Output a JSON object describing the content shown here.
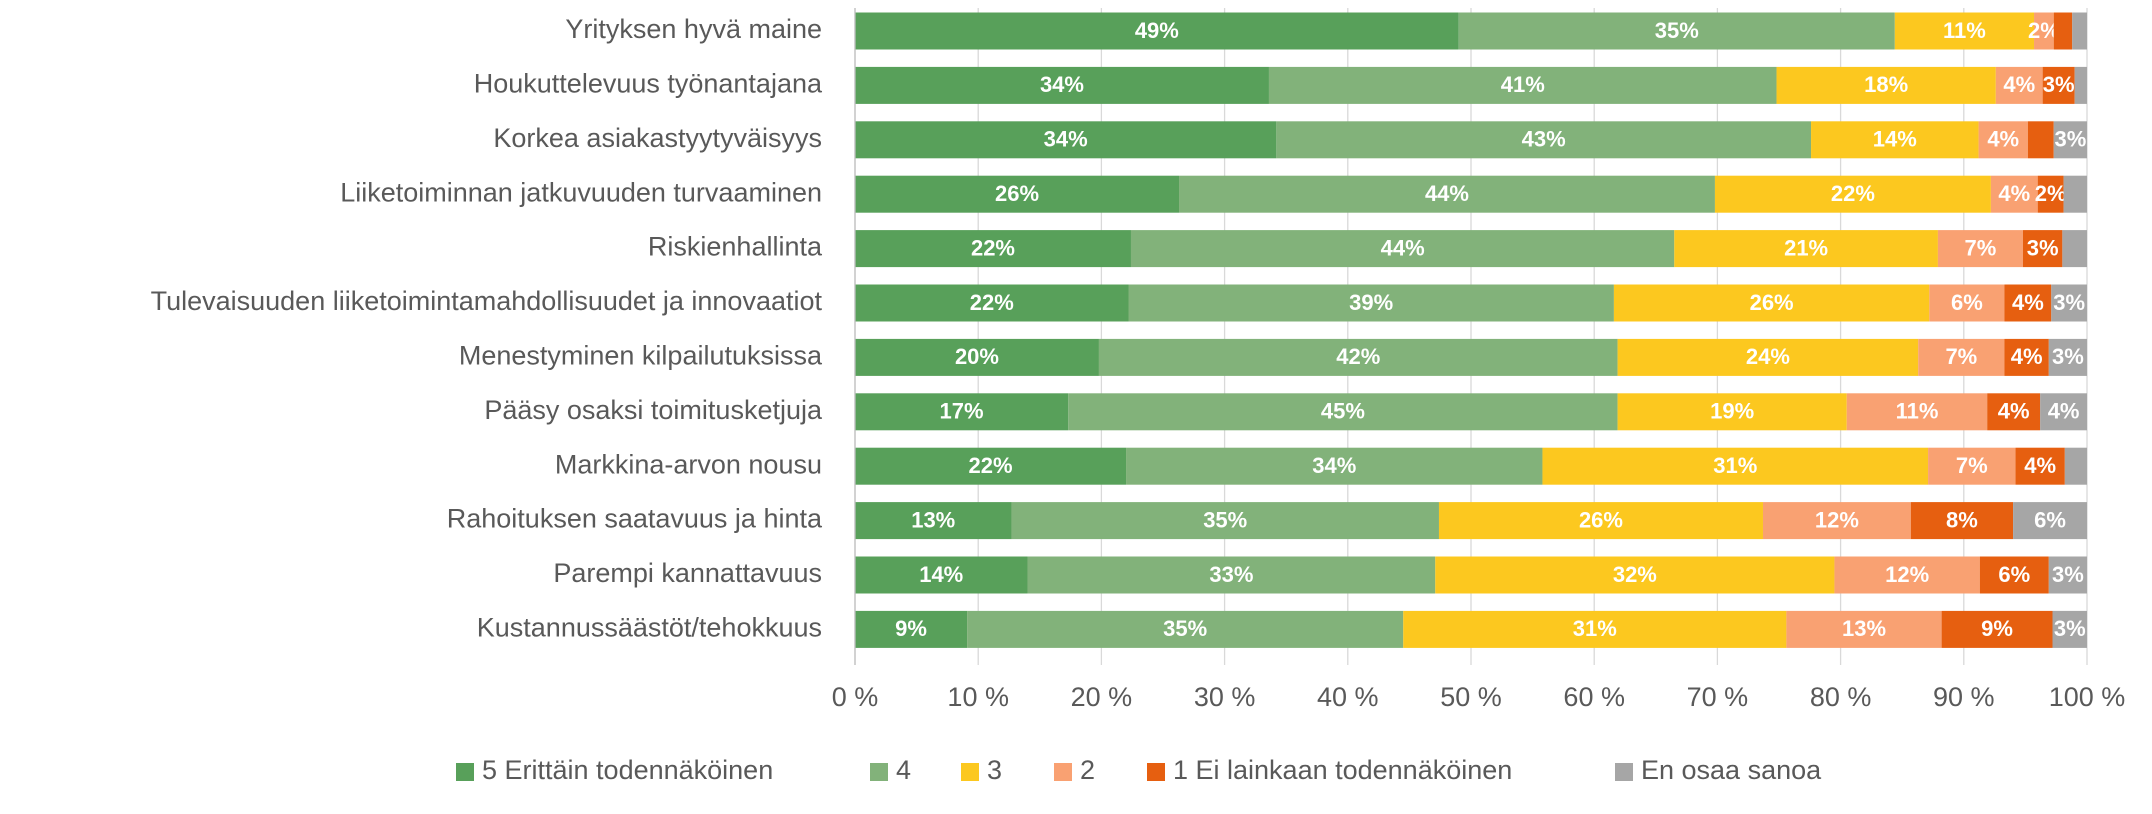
{
  "chart_data": {
    "type": "stacked_bar_horizontal",
    "categories": [
      "Yrityksen hyvä maine",
      "Houkuttelevuus työnantajana",
      "Korkea asiakastyytyväisyys",
      "Liiketoiminnan jatkuvuuden turvaaminen",
      "Riskienhallinta",
      "Tulevaisuuden liiketoimintamahdollisuudet ja innovaatiot",
      "Menestyminen kilpailutuksissa",
      "Pääsy osaksi toimitusketjuja",
      "Markkina-arvon nousu",
      "Rahoituksen saatavuus ja hinta",
      "Parempi kannattavuus",
      "Kustannussäästöt/tehokkuus"
    ],
    "series": [
      {
        "name": "5 Erittäin todennäköinen",
        "color": "#58a05a",
        "values": [
          49,
          33.6,
          34.2,
          26.3,
          22.4,
          22.2,
          19.8,
          17.3,
          22.0,
          12.7,
          14.0,
          9.1
        ],
        "value_labels": [
          "49%",
          "34%",
          "34%",
          "26%",
          "22%",
          "22%",
          "20%",
          "17%",
          "22%",
          "13%",
          "14%",
          "9%"
        ]
      },
      {
        "name": "4",
        "color": "#82b27a",
        "values": [
          35.4,
          41.2,
          43.4,
          43.5,
          44.1,
          39.4,
          42.1,
          44.6,
          33.8,
          34.7,
          33.1,
          35.4
        ],
        "value_labels": [
          "35%",
          "41%",
          "43%",
          "44%",
          "44%",
          "39%",
          "42%",
          "45%",
          "34%",
          "35%",
          "33%",
          "35%"
        ]
      },
      {
        "name": "3",
        "color": "#fcc81f",
        "values": [
          11.3,
          17.8,
          13.6,
          22.4,
          21.4,
          25.6,
          24.4,
          18.6,
          31.3,
          26.3,
          32.4,
          31.1
        ],
        "value_labels": [
          "11%",
          "18%",
          "14%",
          "22%",
          "21%",
          "26%",
          "24%",
          "19%",
          "31%",
          "26%",
          "32%",
          "31%"
        ]
      },
      {
        "name": "2",
        "color": "#f9a172",
        "values": [
          1.6,
          3.8,
          4.0,
          3.8,
          6.9,
          6.1,
          7.0,
          11.4,
          7.1,
          12.0,
          11.8,
          12.6
        ],
        "value_labels": [
          "2%",
          "4%",
          "4%",
          "4%",
          "7%",
          "6%",
          "7%",
          "11%",
          "7%",
          "12%",
          "12%",
          "13%"
        ]
      },
      {
        "name": "1 Ei lainkaan todennäköinen",
        "color": "#e65f10",
        "values": [
          1.5,
          2.6,
          2.1,
          2.1,
          3.2,
          3.8,
          3.6,
          4.3,
          4.0,
          8.3,
          5.6,
          9.0
        ],
        "value_labels": [
          null,
          "3%",
          null,
          "2%",
          "3%",
          "4%",
          "4%",
          "4%",
          "4%",
          "8%",
          "6%",
          "9%"
        ]
      },
      {
        "name": "En osaa sanoa",
        "color": "#a6a6a6",
        "values": [
          1.2,
          1.0,
          2.7,
          1.9,
          2.0,
          2.9,
          3.1,
          3.8,
          1.8,
          6.0,
          3.1,
          2.8
        ],
        "value_labels": [
          null,
          null,
          "3%",
          null,
          null,
          "3%",
          "3%",
          "4%",
          null,
          "6%",
          "3%",
          "3%"
        ]
      }
    ],
    "xlim": [
      0,
      100
    ],
    "xticks": [
      {
        "value": 0,
        "label": "0 %"
      },
      {
        "value": 10,
        "label": "10 %"
      },
      {
        "value": 20,
        "label": "20 %"
      },
      {
        "value": 30,
        "label": "30 %"
      },
      {
        "value": 40,
        "label": "40 %"
      },
      {
        "value": 50,
        "label": "50 %"
      },
      {
        "value": 60,
        "label": "60 %"
      },
      {
        "value": 70,
        "label": "70 %"
      },
      {
        "value": 80,
        "label": "80 %"
      },
      {
        "value": 90,
        "label": "90 %"
      },
      {
        "value": 100,
        "label": "100 %"
      }
    ],
    "grid": true,
    "legend": "bottom"
  }
}
